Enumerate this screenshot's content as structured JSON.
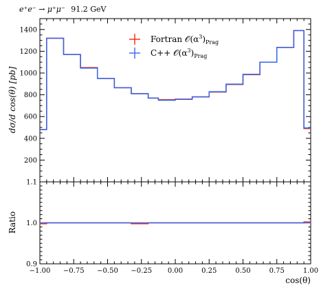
{
  "chart_data": [
    {
      "type": "line",
      "title": "e⁺e⁻ → μ⁺μ⁻ 91.2 GeV",
      "ylabel": "dσ/d cos(θ) [pb]",
      "xlabel": "",
      "xlim": [
        -1.0,
        1.0
      ],
      "ylim": [
        0,
        1500
      ],
      "y_ticks": [
        200,
        400,
        600,
        800,
        1000,
        1200,
        1400
      ],
      "bin_edges": [
        -1.0,
        -0.95,
        -0.825,
        -0.7,
        -0.575,
        -0.45,
        -0.325,
        -0.2,
        -0.125,
        0.0,
        0.125,
        0.25,
        0.375,
        0.5,
        0.625,
        0.75,
        0.875,
        0.95,
        1.0
      ],
      "series": [
        {
          "name": "Fortran 𝒪(α³)Prag",
          "color": "#ff2200",
          "values": [
            480,
            1320,
            1170,
            1050,
            950,
            865,
            810,
            770,
            755,
            760,
            780,
            825,
            895,
            985,
            1100,
            1235,
            1390,
            490
          ]
        },
        {
          "name": "C++ 𝒪(α³)Prag",
          "color": "#3366ee",
          "values": [
            480,
            1320,
            1170,
            1045,
            950,
            865,
            810,
            770,
            750,
            758,
            782,
            828,
            898,
            988,
            1100,
            1235,
            1390,
            495
          ]
        }
      ],
      "legend_position": "top-center"
    },
    {
      "type": "line",
      "title": "",
      "ylabel": "Ratio",
      "xlabel": "cos(θ)",
      "xlim": [
        -1.0,
        1.0
      ],
      "ylim": [
        0.9,
        1.1
      ],
      "y_ticks": [
        0.9,
        1.0,
        1.1
      ],
      "x_ticks": [
        -1.0,
        -0.75,
        -0.5,
        -0.25,
        0.0,
        0.25,
        0.5,
        0.75,
        1.0
      ],
      "bin_edges": [
        -1.0,
        -0.95,
        -0.825,
        -0.7,
        -0.575,
        -0.45,
        -0.325,
        -0.2,
        -0.125,
        0.0,
        0.125,
        0.25,
        0.375,
        0.5,
        0.625,
        0.75,
        0.875,
        0.95,
        1.0
      ],
      "series": [
        {
          "name": "Fortran 𝒪(α³)Prag",
          "color": "#ff2200",
          "values": [
            0.998,
            1.0,
            1.0,
            1.0,
            1.0,
            1.0,
            0.998,
            1.0,
            1.0,
            1.0,
            1.0,
            1.0,
            1.0,
            1.0,
            1.0,
            1.0,
            1.0,
            1.002
          ]
        },
        {
          "name": "C++ 𝒪(α³)Prag",
          "color": "#3366ee",
          "values": [
            1.0,
            1.0,
            1.0,
            1.0,
            1.0,
            1.0,
            1.0,
            1.0,
            1.0,
            1.0,
            1.0,
            1.0,
            1.0,
            1.0,
            1.0,
            1.0,
            1.0,
            1.0
          ]
        }
      ]
    }
  ],
  "labels": {
    "title_lhs": "e⁺e⁻ → μ⁺μ⁻",
    "title_rhs": "91.2 GeV",
    "ylabel_main": "dσ/d cos(θ) [pb]",
    "ylabel_ratio": "Ratio",
    "xlabel": "cos(θ)",
    "legend_fortran_prefix": "Fortran 𝒪(α",
    "legend_cpp_prefix": "C++ 𝒪(α",
    "legend_power": "3",
    "legend_close": ")",
    "legend_sub": "Prag"
  }
}
